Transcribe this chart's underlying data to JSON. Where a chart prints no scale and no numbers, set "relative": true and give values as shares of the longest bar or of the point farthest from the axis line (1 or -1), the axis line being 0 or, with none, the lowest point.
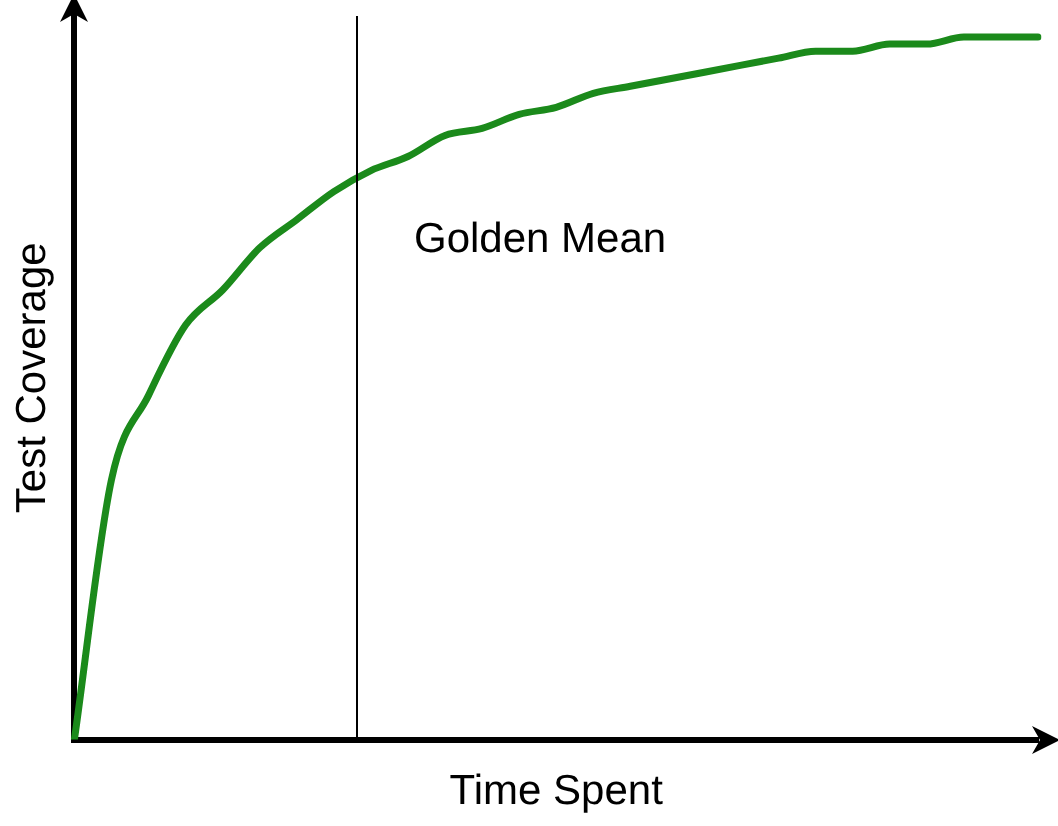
{
  "chart_data": {
    "type": "line",
    "relative": true,
    "xlabel": "Time Spent",
    "ylabel": "Test Coverage",
    "categories": [
      null,
      null,
      null,
      null,
      null,
      null,
      null,
      null,
      null,
      null,
      null,
      null,
      null,
      null,
      null,
      null,
      null,
      null,
      null,
      null,
      null,
      null,
      null,
      null,
      null,
      null,
      null
    ],
    "series": [
      {
        "color": "#1b8a1b",
        "values": [
          0,
          0.37,
          0.49,
          0.59,
          0.64,
          0.7,
          0.74,
          0.78,
          0.81,
          0.83,
          0.86,
          0.87,
          0.89,
          0.9,
          0.92,
          0.93,
          0.94,
          0.95,
          0.96,
          0.97,
          0.98,
          0.98,
          0.99,
          0.99,
          1,
          1,
          1
        ]
      }
    ],
    "annotations": [
      "Golden Mean"
    ],
    "grid": false,
    "legend": false,
    "marker": "none",
    "line_style": "solid"
  }
}
